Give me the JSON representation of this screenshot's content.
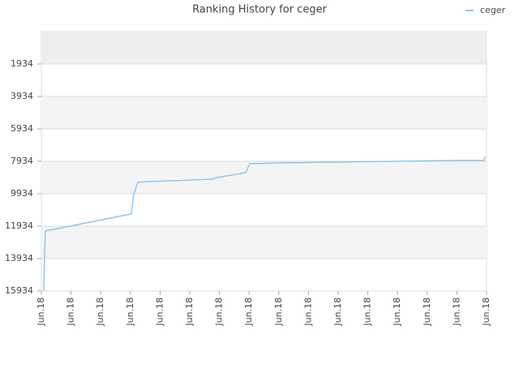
{
  "chart_data": {
    "type": "line",
    "title": "Ranking History for ceger",
    "xlim": [
      0,
      15
    ],
    "xticks": [
      {
        "value": 0,
        "label": "Jun.18"
      },
      {
        "value": 1,
        "label": "Jun.18"
      },
      {
        "value": 2,
        "label": "Jun.18"
      },
      {
        "value": 3,
        "label": "Jun.18"
      },
      {
        "value": 4,
        "label": "Jun.18"
      },
      {
        "value": 5,
        "label": "Jun.18"
      },
      {
        "value": 6,
        "label": "Jun.18"
      },
      {
        "value": 7,
        "label": "Jun.18"
      },
      {
        "value": 8,
        "label": "Jun.18"
      },
      {
        "value": 9,
        "label": "Jun.18"
      },
      {
        "value": 10,
        "label": "Jun.18"
      },
      {
        "value": 11,
        "label": "Jun.18"
      },
      {
        "value": 12,
        "label": "Jun.18"
      },
      {
        "value": 13,
        "label": "Jun.18"
      },
      {
        "value": 14,
        "label": "Jun.18"
      },
      {
        "value": 15,
        "label": "Jun.18"
      }
    ],
    "ylim": [
      15934,
      -66
    ],
    "yticks": [
      1934,
      3934,
      5934,
      7934,
      9934,
      11934,
      13934,
      15934
    ],
    "grid": true,
    "legend": "top-right",
    "series": [
      {
        "name": "ceger",
        "color": "#8ec6ef",
        "x": [
          0.08,
          0.11,
          0.14,
          3.03,
          3.11,
          3.25,
          3.66,
          4.48,
          5.77,
          5.93,
          6.89,
          7.02,
          8.03,
          9.95,
          12.0,
          13.91,
          14.92,
          14.95
        ],
        "values": [
          15934,
          13484,
          12234,
          11184,
          9984,
          9234,
          9184,
          9134,
          9034,
          8934,
          8634,
          8084,
          8034,
          7984,
          7934,
          7884,
          7884,
          7634
        ]
      }
    ]
  }
}
